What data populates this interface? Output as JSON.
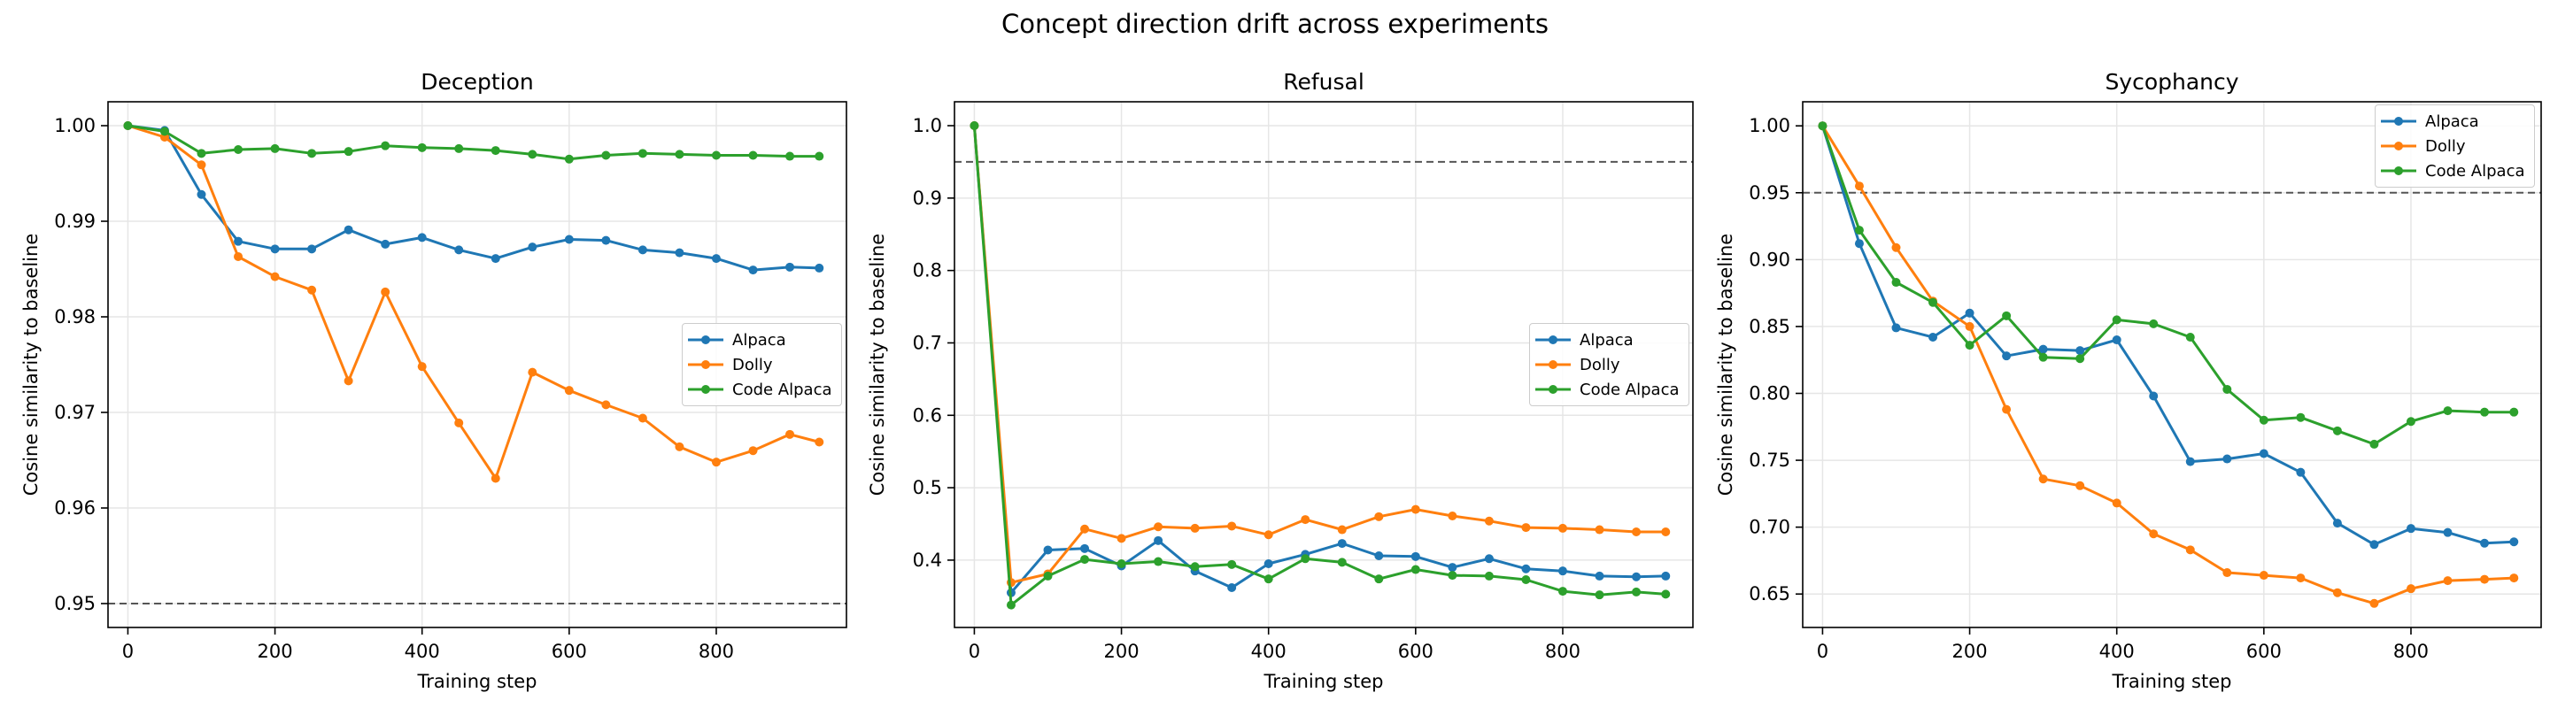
{
  "figure": {
    "title": "Concept direction drift across experiments"
  },
  "colors": {
    "Alpaca": "#1f77b4",
    "Dolly": "#ff7f0e",
    "Code Alpaca": "#2ca02c",
    "threshold": "#555555",
    "grid": "#e6e6e6"
  },
  "chart_data": [
    {
      "type": "line",
      "title": "Deception",
      "xlabel": "Training step",
      "ylabel": "Cosine similarity to baseline",
      "xlim": [
        -27,
        977
      ],
      "ylim": [
        0.9475,
        1.0025
      ],
      "xticks": [
        0,
        200,
        400,
        600,
        800
      ],
      "yticks": [
        0.95,
        0.96,
        0.97,
        0.98,
        0.99,
        1.0
      ],
      "ytick_labels": [
        "0.95",
        "0.96",
        "0.97",
        "0.98",
        "0.99",
        "1.00"
      ],
      "threshold": 0.95,
      "grid": true,
      "legend_position": "center-right",
      "x": [
        0,
        50,
        100,
        150,
        200,
        250,
        300,
        350,
        400,
        450,
        500,
        550,
        600,
        650,
        700,
        750,
        800,
        850,
        900,
        940
      ],
      "series": [
        {
          "name": "Alpaca",
          "values": [
            1.0,
            0.9995,
            0.9928,
            0.9879,
            0.9871,
            0.9871,
            0.9891,
            0.9876,
            0.9883,
            0.987,
            0.9861,
            0.9873,
            0.9881,
            0.988,
            0.987,
            0.9867,
            0.9861,
            0.9849,
            0.9852,
            0.9851
          ]
        },
        {
          "name": "Dolly",
          "values": [
            1.0,
            0.9988,
            0.9959,
            0.9863,
            0.9842,
            0.9828,
            0.9733,
            0.9826,
            0.9748,
            0.9689,
            0.9631,
            0.9742,
            0.9723,
            0.9708,
            0.9694,
            0.9664,
            0.9648,
            0.966,
            0.9677,
            0.9669
          ]
        },
        {
          "name": "Code Alpaca",
          "values": [
            1.0,
            0.9994,
            0.9971,
            0.9975,
            0.9976,
            0.9971,
            0.9973,
            0.9979,
            0.9977,
            0.9976,
            0.9974,
            0.997,
            0.9965,
            0.9969,
            0.9971,
            0.997,
            0.9969,
            0.9969,
            0.9968,
            0.9968
          ]
        }
      ]
    },
    {
      "type": "line",
      "title": "Refusal",
      "xlabel": "Training step",
      "ylabel": "Cosine similarity to baseline",
      "xlim": [
        -27,
        977
      ],
      "ylim": [
        0.307,
        1.033
      ],
      "xticks": [
        0,
        200,
        400,
        600,
        800
      ],
      "yticks": [
        0.4,
        0.5,
        0.6,
        0.7,
        0.8,
        0.9,
        1.0
      ],
      "ytick_labels": [
        "0.4",
        "0.5",
        "0.6",
        "0.7",
        "0.8",
        "0.9",
        "1.0"
      ],
      "threshold": 0.95,
      "grid": true,
      "legend_position": "center-right",
      "x": [
        0,
        50,
        100,
        150,
        200,
        250,
        300,
        350,
        400,
        450,
        500,
        550,
        600,
        650,
        700,
        750,
        800,
        850,
        900,
        940
      ],
      "series": [
        {
          "name": "Alpaca",
          "values": [
            1.0,
            0.355,
            0.414,
            0.416,
            0.392,
            0.427,
            0.385,
            0.362,
            0.395,
            0.408,
            0.423,
            0.406,
            0.405,
            0.39,
            0.402,
            0.388,
            0.385,
            0.378,
            0.377,
            0.378
          ]
        },
        {
          "name": "Dolly",
          "values": [
            1.0,
            0.369,
            0.381,
            0.443,
            0.43,
            0.446,
            0.444,
            0.447,
            0.435,
            0.456,
            0.442,
            0.46,
            0.47,
            0.461,
            0.454,
            0.445,
            0.444,
            0.442,
            0.439,
            0.439
          ]
        },
        {
          "name": "Code Alpaca",
          "values": [
            1.0,
            0.338,
            0.378,
            0.401,
            0.395,
            0.398,
            0.391,
            0.394,
            0.374,
            0.402,
            0.397,
            0.374,
            0.387,
            0.379,
            0.378,
            0.373,
            0.357,
            0.352,
            0.356,
            0.353
          ]
        }
      ]
    },
    {
      "type": "line",
      "title": "Sycophancy",
      "xlabel": "Training step",
      "ylabel": "Cosine similarity to baseline",
      "xlim": [
        -27,
        977
      ],
      "ylim": [
        0.625,
        1.018
      ],
      "xticks": [
        0,
        200,
        400,
        600,
        800
      ],
      "yticks": [
        0.65,
        0.7,
        0.75,
        0.8,
        0.85,
        0.9,
        0.95,
        1.0
      ],
      "ytick_labels": [
        "0.65",
        "0.70",
        "0.75",
        "0.80",
        "0.85",
        "0.90",
        "0.95",
        "1.00"
      ],
      "threshold": 0.95,
      "grid": true,
      "legend_position": "upper-right",
      "x": [
        0,
        50,
        100,
        150,
        200,
        250,
        300,
        350,
        400,
        450,
        500,
        550,
        600,
        650,
        700,
        750,
        800,
        850,
        900,
        940
      ],
      "series": [
        {
          "name": "Alpaca",
          "values": [
            1.0,
            0.912,
            0.849,
            0.842,
            0.86,
            0.828,
            0.833,
            0.832,
            0.84,
            0.798,
            0.749,
            0.751,
            0.755,
            0.741,
            0.703,
            0.687,
            0.699,
            0.696,
            0.688,
            0.689
          ]
        },
        {
          "name": "Dolly",
          "values": [
            1.0,
            0.955,
            0.909,
            0.869,
            0.85,
            0.788,
            0.736,
            0.731,
            0.718,
            0.695,
            0.683,
            0.666,
            0.664,
            0.662,
            0.651,
            0.643,
            0.654,
            0.66,
            0.661,
            0.662
          ]
        },
        {
          "name": "Code Alpaca",
          "values": [
            1.0,
            0.922,
            0.883,
            0.868,
            0.836,
            0.858,
            0.827,
            0.826,
            0.855,
            0.852,
            0.842,
            0.803,
            0.78,
            0.782,
            0.772,
            0.762,
            0.779,
            0.787,
            0.786,
            0.786
          ]
        }
      ]
    }
  ]
}
